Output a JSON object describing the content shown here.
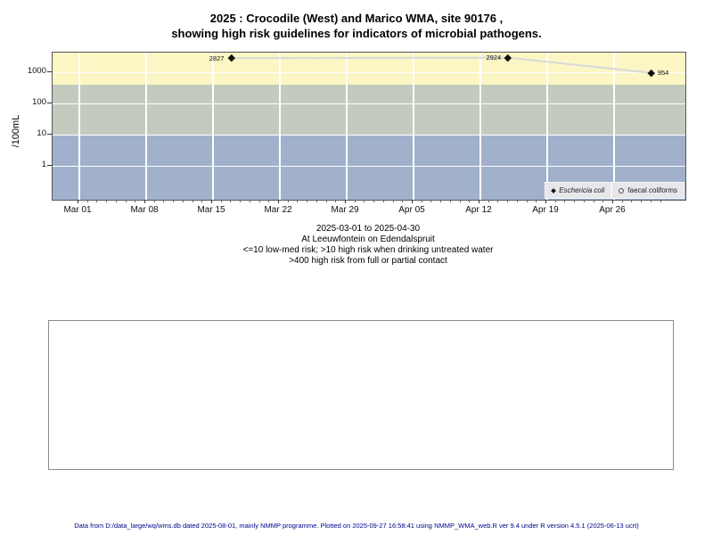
{
  "title": {
    "line1": "2025 : Crocodile (West) and Marico WMA, site 90176 ,",
    "line2": "showing high risk guidelines for indicators of microbial pathogens."
  },
  "chart_data": {
    "type": "line",
    "title": "2025 : Crocodile (West) and Marico WMA, site 90176, showing high risk guidelines for indicators of microbial pathogens.",
    "ylabel": "/100mL",
    "xlabel": "",
    "y_scale": "log10",
    "ylim": [
      0.08,
      4300
    ],
    "y_ticks": [
      "1",
      "10",
      "100",
      "1000"
    ],
    "x_ticks": [
      "Mar 01",
      "Mar 08",
      "Mar 15",
      "Mar 22",
      "Mar 29",
      "Apr 05",
      "Apr 12",
      "Apr 19",
      "Apr 26"
    ],
    "grid": true,
    "grid_color": "#FFFFFF",
    "risk_bands": [
      {
        "name": "high risk from full or partial contact (>400)",
        "from": 400,
        "to": 4300,
        "color": "#FBF6C3"
      },
      {
        "name": "high risk when drinking untreated water (>10)",
        "from": 10,
        "to": 400,
        "color": "#C3CBBE"
      },
      {
        "name": "low-med risk (<=10)",
        "from": 0.08,
        "to": 10,
        "color": "#A1B1CC"
      }
    ],
    "series": [
      {
        "name": "Eschericia coli",
        "marker": "filled-diamond",
        "marker_color": "#111111",
        "line_color": "#D9D9D9",
        "points": [
          {
            "date": "Mar 17",
            "day": 16,
            "value": 2827,
            "label": "2827",
            "label_side": "left"
          },
          {
            "date": "Apr 15",
            "day": 45,
            "value": 2924,
            "label": "2924",
            "label_side": "left"
          },
          {
            "date": "Apr 30",
            "day": 60,
            "value": 954,
            "label": "954",
            "label_side": "right"
          }
        ]
      },
      {
        "name": "faecal coliforms",
        "marker": "open-circle",
        "points": []
      }
    ],
    "legend": [
      {
        "label": "Eschericia coli",
        "marker": "filled-diamond",
        "italic": true
      },
      {
        "label": "faecal coliforms",
        "marker": "open-circle",
        "italic": false
      }
    ],
    "legend_position": "bottom-right"
  },
  "caption": {
    "line1": "2025-03-01 to 2025-04-30",
    "line2": "At Leeuwfontein on Edendalspruit",
    "line3": "<=10 low-med risk; >10 high risk when drinking untreated water",
    "line4": ">400 high risk from full or partial contact"
  },
  "footer": "Data from D:/data_large/wq/wms.db dated 2025-08-01, mainly NMMP programme. Plotted on 2025-09-27 16:58:41 using NMMP_WMA_web.R ver 9.4 under R version 4.5.1 (2025-06-13 ucrt)",
  "colors": {
    "band_contact_risk": "#FBF6C3",
    "band_drinking_risk": "#C3CBBE",
    "band_low_med_risk": "#A1B1CC",
    "series_line": "#D9D9D9",
    "footer_text": "#00008B",
    "legend_bg": "#E7E7EB"
  }
}
